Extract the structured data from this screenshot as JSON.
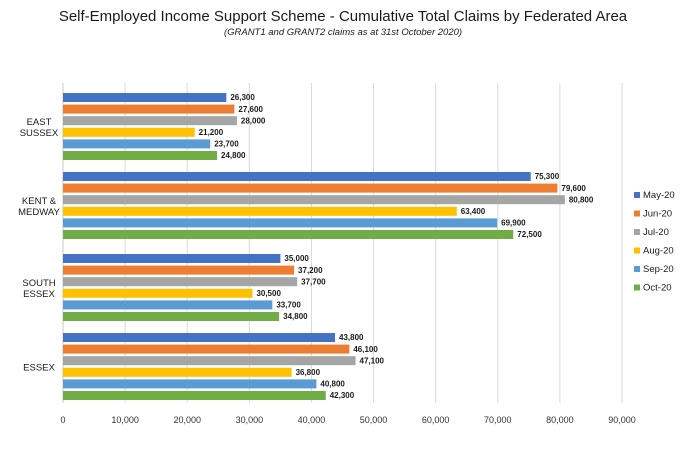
{
  "chart_data": {
    "type": "bar",
    "orientation": "horizontal",
    "title": "Self-Employed Income Support Scheme - Cumulative Total Claims by Federated Area",
    "subtitle": "(GRANT1 and GRANT2 claims as at 31st October 2020)",
    "categories": [
      [
        "EAST",
        "SUSSEX"
      ],
      [
        "KENT &",
        "MEDWAY"
      ],
      [
        "SOUTH",
        "ESSEX"
      ],
      [
        "ESSEX"
      ]
    ],
    "series": [
      {
        "name": "May-20",
        "color": "#4472c4",
        "values": [
          26300,
          75300,
          35000,
          43800
        ],
        "labels": [
          "26,300",
          "75,300",
          "35,000",
          "43,800"
        ]
      },
      {
        "name": "Jun-20",
        "color": "#ed7d31",
        "values": [
          27600,
          79600,
          37200,
          46100
        ],
        "labels": [
          "27,600",
          "79,600",
          "37,200",
          "46,100"
        ]
      },
      {
        "name": "Jul-20",
        "color": "#a5a5a5",
        "values": [
          28000,
          80800,
          37700,
          47100
        ],
        "labels": [
          "28,000",
          "80,800",
          "37,700",
          "47,100"
        ]
      },
      {
        "name": "Aug-20",
        "color": "#ffc000",
        "values": [
          21200,
          63400,
          30500,
          36800
        ],
        "labels": [
          "21,200",
          "63,400",
          "30,500",
          "36,800"
        ]
      },
      {
        "name": "Sep-20",
        "color": "#5b9bd5",
        "values": [
          23700,
          69900,
          33700,
          40800
        ],
        "labels": [
          "23,700",
          "69,900",
          "33,700",
          "40,800"
        ]
      },
      {
        "name": "Oct-20",
        "color": "#70ad47",
        "values": [
          24800,
          72500,
          34800,
          42300
        ],
        "labels": [
          "24,800",
          "72,500",
          "34,800",
          "42,300"
        ]
      }
    ],
    "xlim": [
      0,
      90000
    ],
    "xticks": [
      0,
      10000,
      20000,
      30000,
      40000,
      50000,
      60000,
      70000,
      80000,
      90000
    ],
    "xtick_labels": [
      "0",
      "10,000",
      "20,000",
      "30,000",
      "40,000",
      "50,000",
      "60,000",
      "70,000",
      "80,000",
      "90,000"
    ],
    "grid": "vertical",
    "legend": "right"
  }
}
